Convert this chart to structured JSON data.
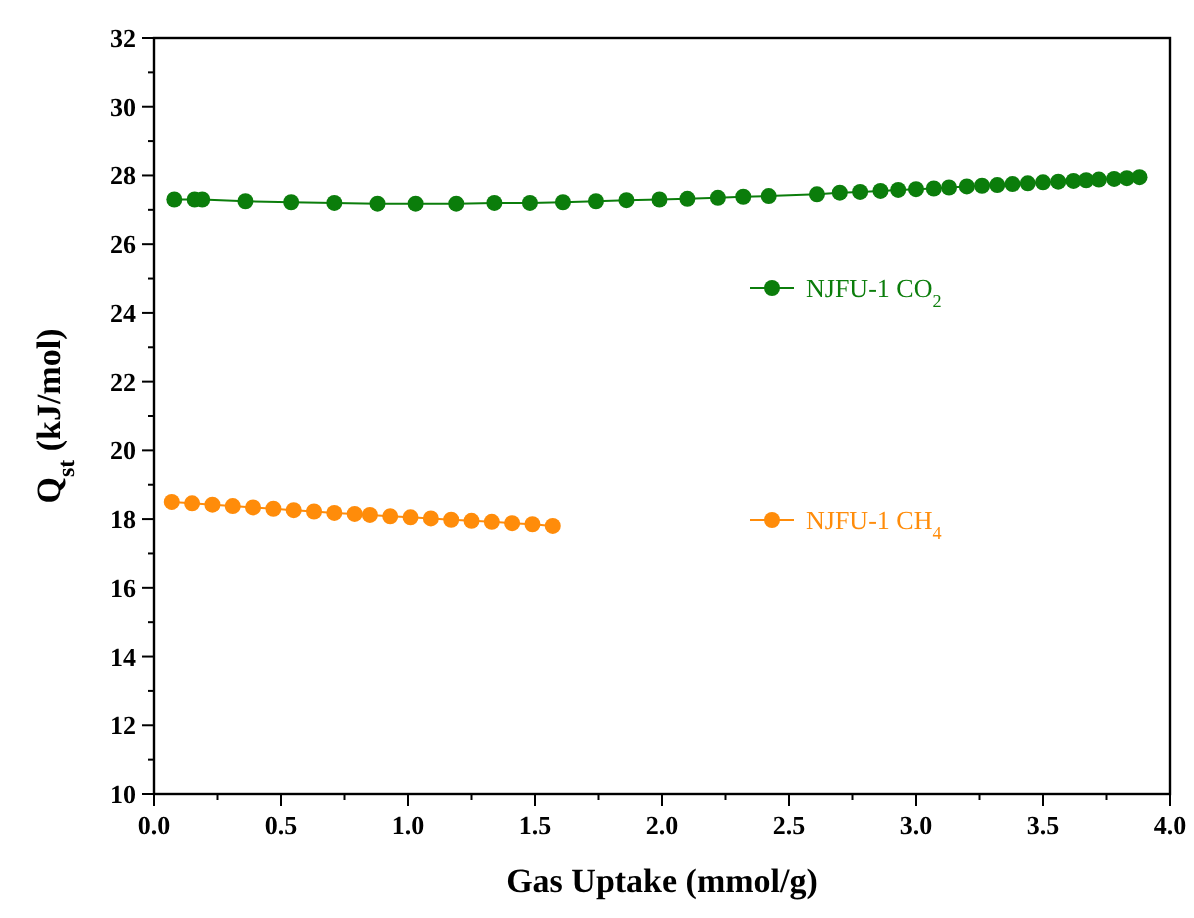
{
  "chart_data": {
    "type": "line",
    "xlabel": "Gas Uptake (mmol/g)",
    "ylabel": "Q$_{st}$ (kJ/mol)",
    "xlim": [
      0,
      4
    ],
    "ylim": [
      10,
      32
    ],
    "xticks": [
      {
        "value": 0,
        "label": "0.0"
      },
      {
        "value": 0.25,
        "label": null
      },
      {
        "value": 0.5,
        "label": "0.5"
      },
      {
        "value": 0.75,
        "label": null
      },
      {
        "value": 1,
        "label": "1.0"
      },
      {
        "value": 1.25,
        "label": null
      },
      {
        "value": 1.5,
        "label": "1.5"
      },
      {
        "value": 1.75,
        "label": null
      },
      {
        "value": 2,
        "label": "2.0"
      },
      {
        "value": 2.25,
        "label": null
      },
      {
        "value": 2.5,
        "label": "2.5"
      },
      {
        "value": 2.75,
        "label": null
      },
      {
        "value": 3,
        "label": "3.0"
      },
      {
        "value": 3.25,
        "label": null
      },
      {
        "value": 3.5,
        "label": "3.5"
      },
      {
        "value": 3.75,
        "label": null
      },
      {
        "value": 4,
        "label": "4.0"
      }
    ],
    "yticks": [
      10,
      {
        "value": 11,
        "label": null
      },
      12,
      {
        "value": 13,
        "label": null
      },
      14,
      {
        "value": 15,
        "label": null
      },
      16,
      {
        "value": 17,
        "label": null
      },
      18,
      {
        "value": 19,
        "label": null
      },
      20,
      {
        "value": 21,
        "label": null
      },
      22,
      {
        "value": 23,
        "label": null
      },
      24,
      {
        "value": 25,
        "label": null
      },
      26,
      {
        "value": 27,
        "label": null
      },
      28,
      {
        "value": 29,
        "label": null
      },
      30,
      {
        "value": 31,
        "label": null
      },
      32
    ],
    "marker": "circle",
    "line_style": "solid",
    "legend": "right",
    "grid": false,
    "series": [
      {
        "name": "NJFU-1 CO$_{2}$",
        "color": "#0b7d0b",
        "x": [
          0.08,
          0.16,
          0.19,
          0.36,
          0.54,
          0.71,
          0.88,
          1.03,
          1.19,
          1.34,
          1.48,
          1.61,
          1.74,
          1.86,
          1.99,
          2.1,
          2.22,
          2.32,
          2.42,
          2.61,
          2.7,
          2.78,
          2.86,
          2.93,
          3.0,
          3.07,
          3.13,
          3.2,
          3.26,
          3.32,
          3.38,
          3.44,
          3.5,
          3.56,
          3.62,
          3.67,
          3.72,
          3.78,
          3.83,
          3.88
        ],
        "values": [
          27.3,
          27.3,
          27.3,
          27.25,
          27.22,
          27.2,
          27.18,
          27.18,
          27.18,
          27.2,
          27.2,
          27.22,
          27.25,
          27.28,
          27.3,
          27.32,
          27.35,
          27.38,
          27.4,
          27.45,
          27.5,
          27.52,
          27.55,
          27.58,
          27.6,
          27.62,
          27.65,
          27.68,
          27.7,
          27.72,
          27.75,
          27.77,
          27.8,
          27.82,
          27.84,
          27.86,
          27.88,
          27.9,
          27.92,
          27.95
        ]
      },
      {
        "name": "NJFU-1 CH$_{4}$",
        "color": "#ff8c0a",
        "x": [
          0.07,
          0.15,
          0.23,
          0.31,
          0.39,
          0.47,
          0.55,
          0.63,
          0.71,
          0.79,
          0.85,
          0.93,
          1.01,
          1.09,
          1.17,
          1.25,
          1.33,
          1.41,
          1.49,
          1.57
        ],
        "values": [
          18.5,
          18.46,
          18.42,
          18.38,
          18.34,
          18.3,
          18.26,
          18.22,
          18.18,
          18.15,
          18.12,
          18.08,
          18.05,
          18.02,
          17.98,
          17.95,
          17.92,
          17.88,
          17.85,
          17.8
        ]
      }
    ]
  }
}
